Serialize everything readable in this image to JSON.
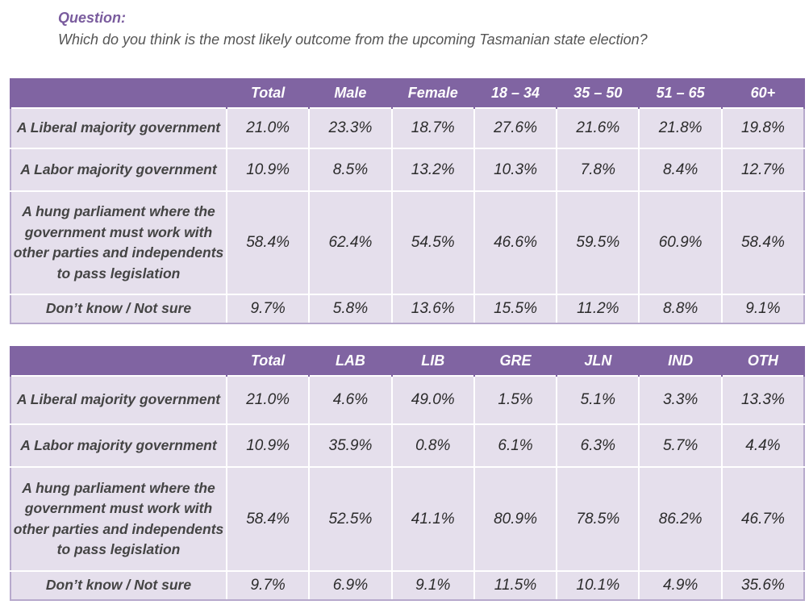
{
  "question": {
    "label": "Question:",
    "text": "Which do you think is the most likely outcome from the upcoming Tasmanian state election?"
  },
  "demographics_table": {
    "headers": [
      "",
      "Total",
      "Male",
      "Female",
      "18 – 34",
      "35 – 50",
      "51 – 65",
      "60+"
    ],
    "rows": [
      {
        "label": "A Liberal majority government",
        "values": [
          "21.0%",
          "23.3%",
          "18.7%",
          "27.6%",
          "21.6%",
          "21.8%",
          "19.8%"
        ]
      },
      {
        "label": "A Labor majority government",
        "values": [
          "10.9%",
          "8.5%",
          "13.2%",
          "10.3%",
          "7.8%",
          "8.4%",
          "12.7%"
        ]
      },
      {
        "label": "A hung parliament where the government must work with other parties and independents to pass legislation",
        "values": [
          "58.4%",
          "62.4%",
          "54.5%",
          "46.6%",
          "59.5%",
          "60.9%",
          "58.4%"
        ]
      },
      {
        "label": "Don’t know / Not sure",
        "values": [
          "9.7%",
          "5.8%",
          "13.6%",
          "15.5%",
          "11.2%",
          "8.8%",
          "9.1%"
        ]
      }
    ]
  },
  "party_table": {
    "headers": [
      "",
      "Total",
      "LAB",
      "LIB",
      "GRE",
      "JLN",
      "IND",
      "OTH"
    ],
    "rows": [
      {
        "label": "A Liberal majority government",
        "values": [
          "21.0%",
          "4.6%",
          "49.0%",
          "1.5%",
          "5.1%",
          "3.3%",
          "13.3%"
        ]
      },
      {
        "label": "A Labor majority government",
        "values": [
          "10.9%",
          "35.9%",
          "0.8%",
          "6.1%",
          "6.3%",
          "5.7%",
          "4.4%"
        ]
      },
      {
        "label": "A hung parliament where the government must work with other parties and independents to pass legislation",
        "values": [
          "58.4%",
          "52.5%",
          "41.1%",
          "80.9%",
          "78.5%",
          "86.2%",
          "46.7%"
        ]
      },
      {
        "label": "Don’t know / Not sure",
        "values": [
          "9.7%",
          "6.9%",
          "9.1%",
          "11.5%",
          "10.1%",
          "4.9%",
          "35.6%"
        ]
      }
    ]
  },
  "colors": {
    "header_bg": "#8064a2",
    "cell_bg": "#e5dfec",
    "question_label": "#7a5c9e"
  }
}
